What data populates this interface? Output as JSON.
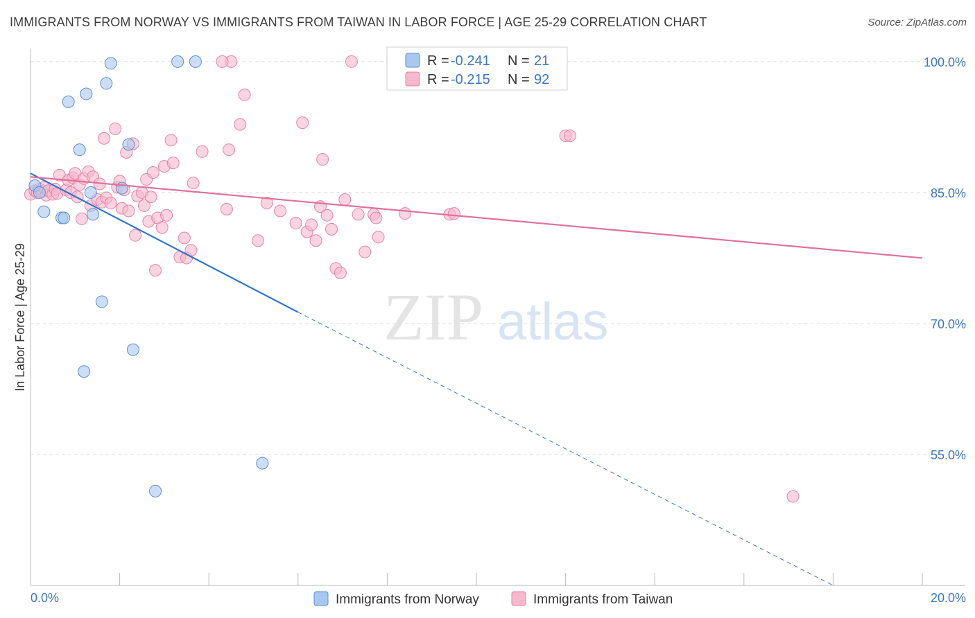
{
  "title": "IMMIGRANTS FROM NORWAY VS IMMIGRANTS FROM TAIWAN IN LABOR FORCE | AGE 25-29 CORRELATION CHART",
  "source": "Source: ZipAtlas.com",
  "watermark": {
    "zip": "ZIP",
    "atlas": "atlas"
  },
  "colors": {
    "norway_fill": "#a9c8f0",
    "norway_stroke": "#5b8fd6",
    "norway_line": "#2f74d0",
    "taiwan_fill": "#f6b8cc",
    "taiwan_stroke": "#e583a6",
    "taiwan_line": "#e0709a",
    "tick_text": "#3a76c4",
    "grid": "#dddddd"
  },
  "legend": {
    "rows": [
      {
        "series": "norway",
        "r_label": "R = ",
        "r_value": "-0.241",
        "n_label": "N = ",
        "n_value": "21"
      },
      {
        "series": "taiwan",
        "r_label": "R = ",
        "r_value": "-0.215",
        "n_label": "N = ",
        "n_value": "92"
      }
    ]
  },
  "chart_data": {
    "type": "scatter",
    "title": "IMMIGRANTS FROM NORWAY VS IMMIGRANTS FROM TAIWAN IN LABOR FORCE | AGE 25-29 CORRELATION CHART",
    "xlabel": "",
    "ylabel": "In Labor Force | Age 25-29",
    "xlim": [
      0,
      20
    ],
    "ylim": [
      40,
      101.5
    ],
    "x_tick_labels": [
      "0.0%",
      "20.0%"
    ],
    "y_ticks": [
      100,
      85,
      70,
      55
    ],
    "y_tick_labels": [
      "100.0%",
      "85.0%",
      "70.0%",
      "55.0%"
    ],
    "grid": true,
    "series": [
      {
        "name": "Immigrants from Norway",
        "color": "#a9c8f0",
        "points": [
          [
            0.1,
            85.8
          ],
          [
            0.2,
            85.0
          ],
          [
            0.3,
            82.8
          ],
          [
            0.7,
            82.1
          ],
          [
            0.75,
            82.1
          ],
          [
            0.85,
            95.4
          ],
          [
            1.1,
            89.9
          ],
          [
            1.25,
            96.3
          ],
          [
            1.35,
            85.0
          ],
          [
            1.4,
            82.5
          ],
          [
            1.6,
            72.5
          ],
          [
            1.7,
            97.5
          ],
          [
            1.8,
            99.8
          ],
          [
            2.05,
            85.5
          ],
          [
            2.2,
            90.5
          ],
          [
            2.3,
            67.0
          ],
          [
            1.2,
            64.5
          ],
          [
            2.8,
            50.8
          ],
          [
            3.3,
            100.0
          ],
          [
            3.7,
            100.0
          ],
          [
            5.2,
            54.0
          ]
        ],
        "trend": {
          "x": [
            0.0,
            6.0
          ],
          "y": [
            87.2,
            71.3
          ],
          "dashed_extension": {
            "x": [
              6.0,
              18.0
            ],
            "y": [
              71.3,
              40.0
            ]
          }
        }
      },
      {
        "name": "Immigrants from Taiwan",
        "color": "#f6b8cc",
        "points": [
          [
            0.0,
            84.8
          ],
          [
            0.1,
            85.2
          ],
          [
            0.15,
            85.0
          ],
          [
            0.2,
            85.4
          ],
          [
            0.25,
            85.1
          ],
          [
            0.3,
            85.6
          ],
          [
            0.35,
            84.7
          ],
          [
            0.4,
            85.2
          ],
          [
            0.5,
            84.8
          ],
          [
            0.55,
            85.4
          ],
          [
            0.6,
            84.9
          ],
          [
            0.65,
            87.0
          ],
          [
            0.8,
            85.3
          ],
          [
            0.85,
            86.4
          ],
          [
            0.9,
            85.0
          ],
          [
            0.95,
            86.7
          ],
          [
            1.0,
            87.2
          ],
          [
            1.05,
            84.5
          ],
          [
            1.1,
            85.9
          ],
          [
            1.15,
            82.0
          ],
          [
            1.2,
            86.6
          ],
          [
            1.3,
            87.4
          ],
          [
            1.35,
            83.5
          ],
          [
            1.4,
            86.8
          ],
          [
            1.5,
            84.2
          ],
          [
            1.55,
            86.0
          ],
          [
            1.6,
            83.9
          ],
          [
            1.65,
            91.2
          ],
          [
            1.7,
            84.4
          ],
          [
            1.8,
            83.8
          ],
          [
            1.9,
            92.3
          ],
          [
            1.95,
            85.6
          ],
          [
            2.0,
            86.3
          ],
          [
            2.05,
            83.2
          ],
          [
            2.1,
            85.3
          ],
          [
            2.15,
            89.6
          ],
          [
            2.2,
            82.9
          ],
          [
            2.3,
            90.6
          ],
          [
            2.35,
            80.1
          ],
          [
            2.4,
            84.6
          ],
          [
            2.5,
            85.0
          ],
          [
            2.55,
            83.5
          ],
          [
            2.6,
            86.5
          ],
          [
            2.65,
            81.7
          ],
          [
            2.7,
            84.5
          ],
          [
            2.75,
            87.3
          ],
          [
            2.8,
            76.1
          ],
          [
            2.85,
            82.1
          ],
          [
            2.95,
            81.0
          ],
          [
            3.0,
            88.0
          ],
          [
            3.05,
            82.4
          ],
          [
            3.15,
            91.0
          ],
          [
            3.2,
            88.4
          ],
          [
            3.35,
            77.6
          ],
          [
            3.45,
            79.8
          ],
          [
            3.5,
            77.5
          ],
          [
            3.6,
            78.4
          ],
          [
            3.65,
            86.1
          ],
          [
            3.85,
            89.7
          ],
          [
            4.4,
            83.1
          ],
          [
            4.45,
            89.9
          ],
          [
            4.5,
            100.0
          ],
          [
            4.7,
            92.8
          ],
          [
            4.8,
            96.2
          ],
          [
            5.1,
            79.5
          ],
          [
            5.3,
            83.8
          ],
          [
            5.6,
            82.9
          ],
          [
            5.95,
            81.5
          ],
          [
            6.1,
            93.0
          ],
          [
            6.2,
            80.5
          ],
          [
            6.3,
            81.3
          ],
          [
            6.4,
            79.5
          ],
          [
            6.5,
            83.4
          ],
          [
            6.55,
            88.8
          ],
          [
            6.65,
            82.4
          ],
          [
            6.75,
            80.8
          ],
          [
            6.85,
            76.3
          ],
          [
            6.95,
            75.8
          ],
          [
            7.05,
            84.2
          ],
          [
            7.2,
            100.0
          ],
          [
            7.35,
            82.5
          ],
          [
            7.5,
            78.2
          ],
          [
            7.7,
            82.5
          ],
          [
            7.75,
            82.1
          ],
          [
            7.8,
            79.9
          ],
          [
            8.4,
            82.6
          ],
          [
            9.4,
            82.5
          ],
          [
            9.5,
            82.6
          ],
          [
            12.0,
            91.5
          ],
          [
            12.1,
            91.5
          ],
          [
            17.1,
            50.2
          ],
          [
            4.3,
            100.0
          ]
        ],
        "trend": {
          "x": [
            0.0,
            20.0
          ],
          "y": [
            86.8,
            77.5
          ]
        }
      }
    ],
    "legend_entries": [
      "Immigrants from Norway",
      "Immigrants from Taiwan"
    ],
    "legend_placement": "bottom-center"
  }
}
